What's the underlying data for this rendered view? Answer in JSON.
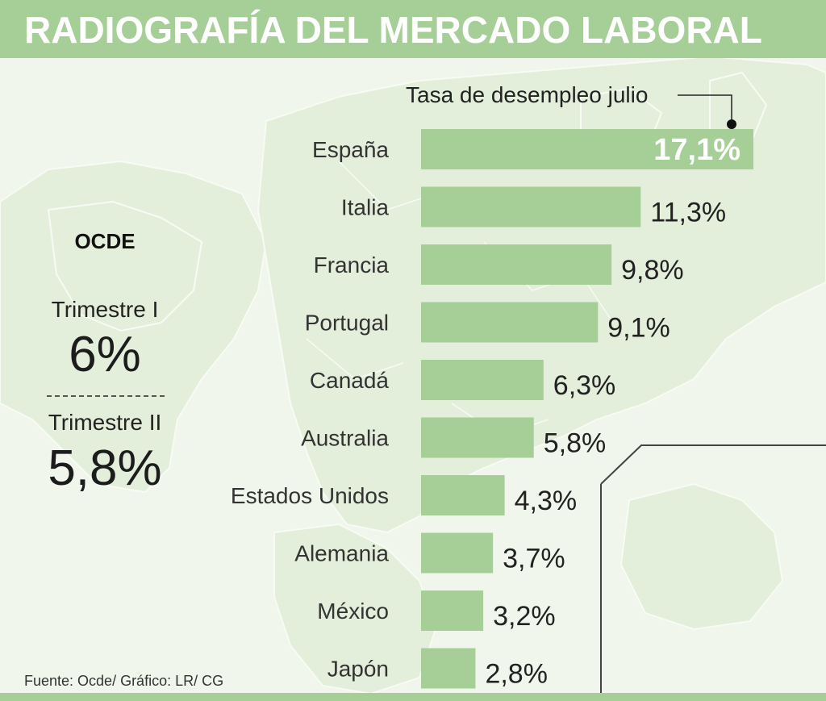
{
  "header": {
    "title": "RADIOGRAFÍA DEL MERCADO LABORAL"
  },
  "sidebar": {
    "title": "OCDE",
    "q1_label": "Trimestre I",
    "q1_value": "6%",
    "q2_label": "Trimestre II",
    "q2_value": "5,8%"
  },
  "source": "Fuente: Ocde/ Gráfico: LR/ CG",
  "colors": {
    "bar": "#a6cf97",
    "header": "#a6cf97",
    "background": "#f1f6ec"
  },
  "chart_data": {
    "type": "bar",
    "orientation": "horizontal",
    "title": "",
    "legend": "Tasa de desempleo julio",
    "categories": [
      "España",
      "Italia",
      "Francia",
      "Portugal",
      "Canadá",
      "Australia",
      "Estados Unidos",
      "Alemania",
      "México",
      "Japón"
    ],
    "values": [
      17.1,
      11.3,
      9.8,
      9.1,
      6.3,
      5.8,
      4.3,
      3.7,
      3.2,
      2.8
    ],
    "value_labels": [
      "17,1%",
      "11,3%",
      "9,8%",
      "9,1%",
      "6,3%",
      "5,8%",
      "4,3%",
      "3,7%",
      "3,2%",
      "2,8%"
    ],
    "grid": false
  }
}
